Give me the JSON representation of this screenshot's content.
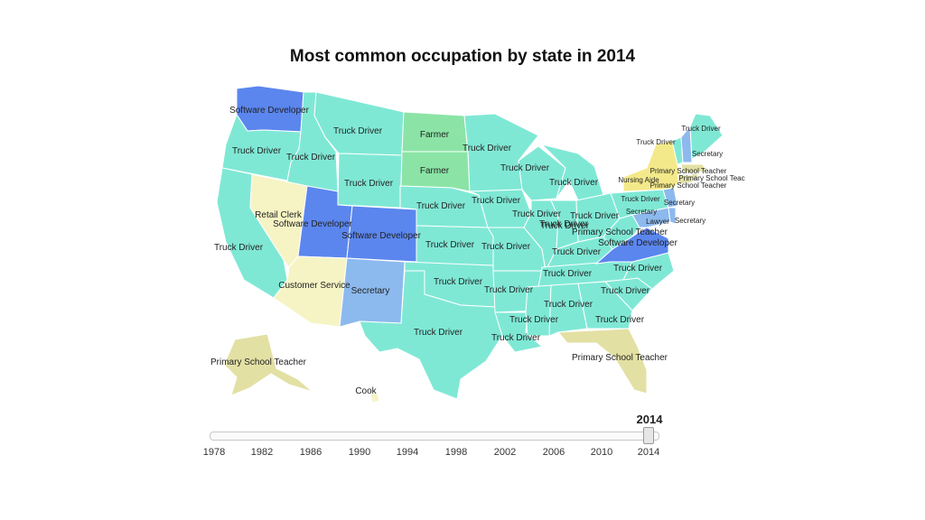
{
  "title": "Most common occupation by state in 2014",
  "colors": {
    "truck_driver": "#7fe8d5",
    "software_developer": "#5b86ee",
    "farmer": "#8be4a6",
    "secretary": "#8cb9ee",
    "retail_customer_cook": "#f6f4c4",
    "primary_school_teacher": "#e3e0a4",
    "nursing_aide": "#f4e98a"
  },
  "labels": {
    "wa": "Software Developer",
    "mt": "Truck Driver",
    "nd": "Farmer",
    "sd": "Farmer",
    "or": "Truck Driver",
    "id": "Truck Driver",
    "wy": "Truck Driver",
    "mn": "Truck Driver",
    "ne": "Truck Driver",
    "ia": "Truck Driver",
    "wi": "Truck Driver",
    "mi": "Truck Driver",
    "nv": "Retail Clerk",
    "ut": "Software Developer",
    "co": "Software Developer",
    "ca": "Truck Driver",
    "ks": "Truck Driver",
    "mo": "Truck Driver",
    "il": "Truck Driver",
    "in": "Truck Driver",
    "oh": "Truck Driver",
    "pa": "Truck Driver",
    "az": "Customer Service",
    "nm": "Secretary",
    "ok": "Truck Driver",
    "ar": "Truck Driver",
    "tn": "Truck Driver",
    "ky": "Truck Driver",
    "wv": "Truck Driver",
    "nc": "Truck Driver",
    "sc": "Truck Driver",
    "tx": "Truck Driver",
    "ms": "Truck Driver",
    "al": "Truck Driver",
    "ga": "Truck Driver",
    "la": "Truck Driver",
    "fl": "Primary School Teacher",
    "ak": "Primary School Teacher",
    "hi": "Cook",
    "me": "Truck Driver",
    "vt": "Truck Driver",
    "nh": "Secretary",
    "ny": "Nursing Aide",
    "ma": "Primary School Teacher",
    "ri": "Primary School Teac",
    "ct": "Primary School Teacher",
    "nj": "Secretary",
    "de": "Secretary",
    "md": "Secretary",
    "dc": "Lawyer",
    "va": "Primary School Teacher",
    "va2": "Software Developer"
  },
  "slider": {
    "current_year": "2014",
    "ticks": [
      "1978",
      "1982",
      "1986",
      "1990",
      "1994",
      "1998",
      "2002",
      "2006",
      "2010",
      "2014"
    ],
    "value": 2014,
    "min": 1978,
    "max": 2014
  }
}
